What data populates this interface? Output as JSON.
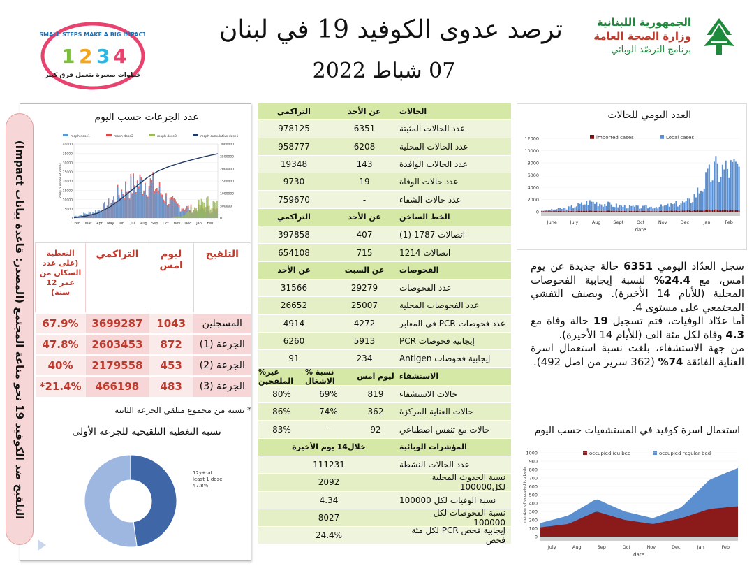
{
  "header": {
    "title": "ترصد عدوى الكوفيد 19 في لبنان",
    "date": "07 شباط 2022",
    "ministry_line1": "الجمهورية اللبنانية",
    "ministry_line2": "وزارة الصحة العامة",
    "ministry_line3": "برنامج الترصّد الوبائي",
    "logo_text_en": "SMALL STEPS MAKE A BIG IMPACT",
    "logo_text_ar": "خطوات صغيرة بتعمل فرق كبير",
    "logo_numbers": [
      "1",
      "2",
      "3",
      "4"
    ]
  },
  "vaccine": {
    "side_label": "التلقيح ضد الكوفيد 19 نحو مناعة المجتمع (المصدر: قاعدة بيانات Impact)",
    "doses_title": "عدد الجرعات حسب اليوم",
    "table": {
      "headers": [
        "التلقيح",
        "ليوم امس",
        "التراكمي",
        "التغطية (على عدد السكان من عمر 12 سنة)"
      ],
      "rows": [
        {
          "label": "المسجلين",
          "yesterday": "1043",
          "cumulative": "3699287",
          "coverage": "67.9%"
        },
        {
          "label": "الجرعة (1)",
          "yesterday": "872",
          "cumulative": "2603453",
          "coverage": "47.8%"
        },
        {
          "label": "الجرعة (2)",
          "yesterday": "453",
          "cumulative": "2179558",
          "coverage": "40%"
        },
        {
          "label": "الجرعة (3)",
          "yesterday": "483",
          "cumulative": "466198",
          "coverage": "21.4%*"
        }
      ]
    },
    "note": "* نسبة من مجموع متلقي الجرعة الثانية",
    "coverage_title": "نسبة التغطية التلقيحية للجرعة الأولى",
    "donut_label_1": "12y+:at",
    "donut_label_2": "least 1 dose",
    "donut_label_3": "47.8%"
  },
  "middle": {
    "cases_header": [
      "الحالات",
      "عن الأحد",
      "التراكمي"
    ],
    "cases": [
      [
        "عدد الحالات المثبتة",
        "6351",
        "978125"
      ],
      [
        "عدد الحالات المحلية",
        "6208",
        "958777"
      ],
      [
        "عدد الحالات الوافدة",
        "143",
        "19348"
      ],
      [
        "عدد حالات الوفاة",
        "19",
        "9730"
      ],
      [
        "عدد حالات الشفاء",
        "-",
        "759670"
      ]
    ],
    "hotline_header": [
      "الخط الساخن",
      "عن الأحد",
      "التراكمي"
    ],
    "hotline": [
      [
        "اتصالات 1787 (1)",
        "407",
        "397858"
      ],
      [
        "اتصالات 1214",
        "715",
        "654108"
      ]
    ],
    "tests_header": [
      "الفحوصات",
      "عن السبت",
      "عن الأحد"
    ],
    "tests": [
      [
        "عدد الفحوصات",
        "29279",
        "31566"
      ],
      [
        "عدد الفحوصات المحلية",
        "25007",
        "26652"
      ],
      [
        "عدد فحوصات PCR في المعابر",
        "4272",
        "4914"
      ],
      [
        "إيجابية فحوصات PCR",
        "5913",
        "6260"
      ],
      [
        "إيجابية فحوصات Antigen",
        "234",
        "91"
      ]
    ],
    "hosp_header": [
      "الاستشفاء",
      "ليوم امس",
      "% نسبة الاشغال",
      "%غير الملقحين"
    ],
    "hosp": [
      [
        "حالات الاستشفاء",
        "819",
        "69%",
        "80%"
      ],
      [
        "حالات العناية المركزة",
        "362",
        "74%",
        "86%"
      ],
      [
        "حالات مع تنفس اصطناعي",
        "92",
        "-",
        "83%"
      ]
    ],
    "ind_header": [
      "المؤشرات الوبائية",
      "خلال14 يوم الأخيرة"
    ],
    "indicators": [
      [
        "عدد الحالات النشطة",
        "111231"
      ],
      [
        "نسبة الحدوث المحلية لكل100000",
        "2092"
      ],
      [
        "نسبة الوفيات لكل 100000",
        "4.34"
      ],
      [
        "نسبة الفحوصات لكل 100000",
        "8027"
      ],
      [
        "إيجابية فحص PCR لكل مئة فحص",
        "24.4%"
      ]
    ]
  },
  "right": {
    "daily_title": "العدد اليومي للحالات",
    "beds_title": "استعمال اسرة كوفيد في المستشفيات حسب اليوم",
    "summary": {
      "p1a": "سجل العدّاد اليومي ",
      "p1b": "6351",
      "p1c": " حالة جديدة عن يوم امس، مع ",
      "p1d": "24.4%",
      "p1e": " لنسبة إيجابية الفحوصات المحلية (للأيام 14 الأخيرة). ويصنف التفشي المجتمعي على مستوى 4.",
      "p2a": "أما عدّاد الوفيات، فتم تسجيل ",
      "p2b": "19",
      "p2c": " حالة وفاة مع ",
      "p2d": "4.3",
      "p2e": " وفاة لكل مئة الف (للأيام 14 الأخيرة).",
      "p3a": "من جهة الاستشفاء، بلغت نسبة استعمال اسرة العناية الفائقة ",
      "p3b": "74%",
      "p3c": " (362 سرير من اصل 492)."
    }
  },
  "chart_data": [
    {
      "type": "bar",
      "title": "عدد الجرعات حسب اليوم",
      "ylabel": "daily number of doses",
      "y2label": "",
      "ylim": [
        0,
        40000
      ],
      "y2lim": [
        0,
        3000000
      ],
      "yticks": [
        "0",
        "5000",
        "10000",
        "15000",
        "20000",
        "25000",
        "30000",
        "35000",
        "40000"
      ],
      "y2ticks": [
        "0",
        "500000",
        "1000000",
        "1500000",
        "2000000",
        "2500000",
        "3000000"
      ],
      "months": [
        "Feb",
        "Mar",
        "Apr",
        "May",
        "Jun",
        "Jul",
        "Aug",
        "Sep",
        "Oct",
        "Nov",
        "Dec",
        "Jan",
        "Feb"
      ],
      "legend": [
        "moph dose1",
        "moph dose2",
        "moph dose3",
        "moph cumulative dose1"
      ],
      "colors": [
        "#5b9bd5",
        "#e04848",
        "#9bbb59",
        "#1f3864"
      ],
      "series": [
        {
          "name": "moph dose1",
          "values": [
            1000,
            2500,
            4000,
            8000,
            14000,
            17000,
            19000,
            14000,
            8000,
            5000,
            4000,
            4000,
            3000
          ]
        },
        {
          "name": "moph dose2",
          "values": [
            0,
            1500,
            3500,
            8000,
            15000,
            18000,
            20000,
            16000,
            9000,
            6000,
            5000,
            5000,
            4000
          ]
        },
        {
          "name": "moph dose3",
          "values": [
            0,
            0,
            0,
            0,
            0,
            0,
            0,
            0,
            0,
            1000,
            5000,
            9000,
            7000
          ]
        },
        {
          "name": "moph cumulative dose1",
          "values": [
            10000,
            80000,
            200000,
            450000,
            800000,
            1200000,
            1600000,
            1900000,
            2100000,
            2250000,
            2380000,
            2500000,
            2603453
          ]
        }
      ]
    },
    {
      "type": "area",
      "title": "العدد اليومي للحالات",
      "ylim": [
        0,
        12000
      ],
      "yticks": [
        "0",
        "2000",
        "4000",
        "6000",
        "8000",
        "10000",
        "12000"
      ],
      "months": [
        "June",
        "July",
        "Aug",
        "Sept",
        "Oct",
        "Nov",
        "Dec",
        "Jan",
        "Feb"
      ],
      "xlabel": "date",
      "legend": [
        "imported cases",
        "Local cases"
      ],
      "colors": [
        "#7b1010",
        "#5b8fd0"
      ],
      "series": [
        {
          "name": "imported cases",
          "values": [
            80,
            90,
            150,
            120,
            100,
            110,
            200,
            300,
            200
          ]
        },
        {
          "name": "Local cases",
          "values": [
            100,
            500,
            1500,
            900,
            600,
            800,
            1500,
            6500,
            7000
          ]
        }
      ]
    },
    {
      "type": "area",
      "title": "استعمال اسرة كوفيد في المستشفيات حسب اليوم",
      "ylabel": "number of occupied icu beds",
      "xlabel": "date",
      "ylim": [
        0,
        1000
      ],
      "yticks": [
        "0",
        "100",
        "200",
        "300",
        "400",
        "500",
        "600",
        "700",
        "800",
        "900",
        "1000"
      ],
      "months": [
        "July",
        "Aug",
        "Sep",
        "Oct",
        "Nov",
        "Dec",
        "Jan",
        "Feb"
      ],
      "legend": [
        "occupied icu bed",
        "occupied regular bed"
      ],
      "colors": [
        "#8b1a1a",
        "#5b8fd0"
      ],
      "series": [
        {
          "name": "occupied icu bed",
          "values": [
            110,
            150,
            300,
            200,
            150,
            220,
            330,
            362
          ]
        },
        {
          "name": "occupied regular bed",
          "values": [
            160,
            250,
            450,
            300,
            220,
            350,
            680,
            819
          ]
        }
      ]
    },
    {
      "type": "pie",
      "title": "نسبة التغطية التلقيحية للجرعة الأولى",
      "values": [
        47.8,
        52.2
      ],
      "labels": [
        "12y+:at least 1 dose 47.8%",
        ""
      ],
      "colors": [
        "#3f67a8",
        "#9db7e0"
      ]
    }
  ]
}
